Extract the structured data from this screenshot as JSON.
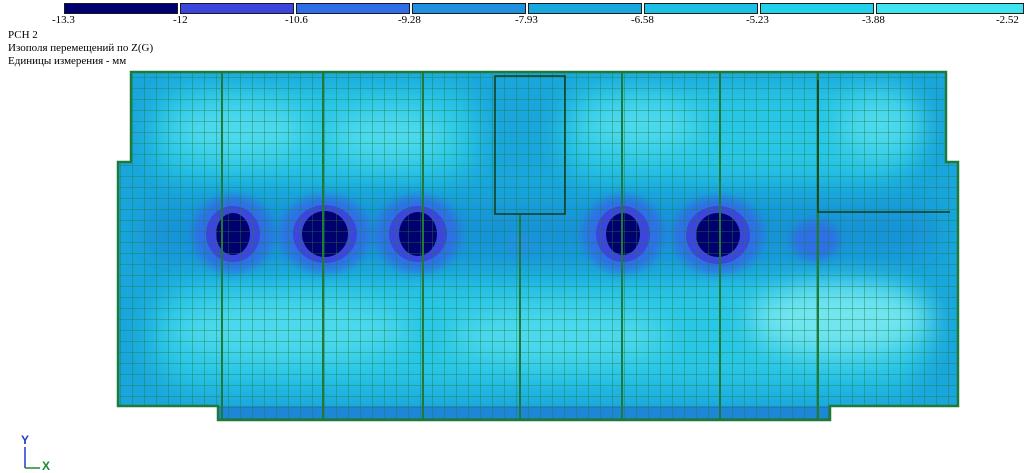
{
  "legend": {
    "ticks": [
      "-13.3",
      "-12",
      "-10.6",
      "-9.28",
      "-7.93",
      "-6.58",
      "-5.23",
      "-3.88",
      "-2.52"
    ],
    "colors": [
      "#00006e",
      "#3c46dc",
      "#2f6ee6",
      "#2090e0",
      "#18a8e0",
      "#1cc0e6",
      "#22d2ea",
      "#40e4f0",
      "#7cf0f2"
    ]
  },
  "info": {
    "load_case": "РСН 2",
    "field_title": "Изополя  перемещений по Z(G)",
    "units": "Единицы измерения - мм"
  },
  "axes": {
    "y_label": "Y",
    "x_label": "X"
  },
  "colors": {
    "mesh": "#1f7a3a",
    "axis_y": "#1f3ad0",
    "axis_x": "#1a8a2a"
  }
}
